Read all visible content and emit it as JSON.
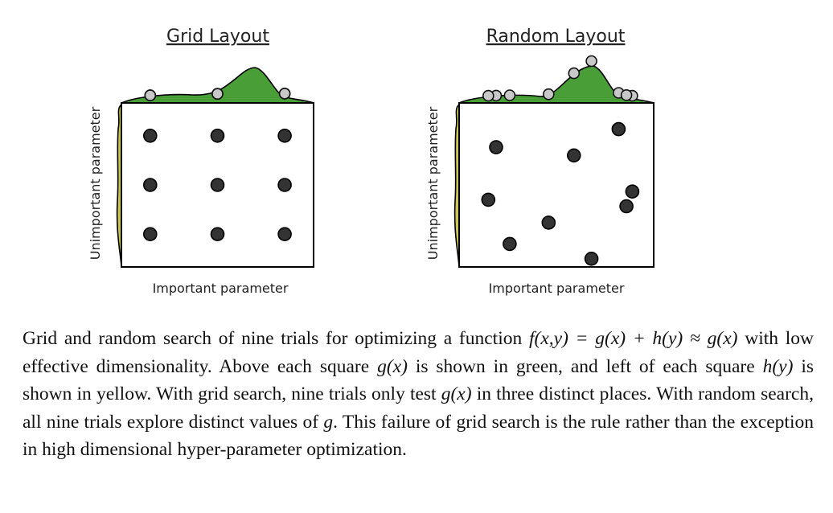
{
  "panels": [
    {
      "title": "Grid Layout",
      "x_label": "Important parameter",
      "y_label": "Unimportant parameter",
      "trials": [
        {
          "important": 0.15,
          "unimportant": 0.8
        },
        {
          "important": 0.5,
          "unimportant": 0.8
        },
        {
          "important": 0.85,
          "unimportant": 0.8
        },
        {
          "important": 0.15,
          "unimportant": 0.5
        },
        {
          "important": 0.5,
          "unimportant": 0.5
        },
        {
          "important": 0.85,
          "unimportant": 0.5
        },
        {
          "important": 0.15,
          "unimportant": 0.2
        },
        {
          "important": 0.5,
          "unimportant": 0.2
        },
        {
          "important": 0.85,
          "unimportant": 0.2
        }
      ]
    },
    {
      "title": "Random Layout",
      "x_label": "Important parameter",
      "y_label": "Unimportant parameter",
      "trials": [
        {
          "important": 0.82,
          "unimportant": 0.84
        },
        {
          "important": 0.19,
          "unimportant": 0.73
        },
        {
          "important": 0.59,
          "unimportant": 0.68
        },
        {
          "important": 0.89,
          "unimportant": 0.46
        },
        {
          "important": 0.15,
          "unimportant": 0.41
        },
        {
          "important": 0.86,
          "unimportant": 0.37
        },
        {
          "important": 0.46,
          "unimportant": 0.27
        },
        {
          "important": 0.26,
          "unimportant": 0.14
        },
        {
          "important": 0.68,
          "unimportant": 0.05
        }
      ]
    }
  ],
  "caption": {
    "t1": "Grid and random search of nine trials for optimizing a function ",
    "m1": "f(x,y) = g(x) + h(y) ≈ g(x)",
    "t2": " with low effective dimensionality. Above each square ",
    "m2": "g(x)",
    "t3": " is shown in green, and left of each square ",
    "m3": "h(y)",
    "t4": " is shown in yellow. With grid search, nine trials only test ",
    "m4": "g(x)",
    "t5": " in three distinct places. With random search, all nine trials explore distinct values of ",
    "m5": "g",
    "t6": ". This failure of grid search is the rule rather than the exception in high dimensional hyper-parameter optimization."
  },
  "colors": {
    "g_curve_fill": "#4a9e38",
    "h_curve_fill": "#c9c556",
    "trial_point": "#333333",
    "projected_point": "#c8c8c8",
    "frame": "#000000"
  }
}
